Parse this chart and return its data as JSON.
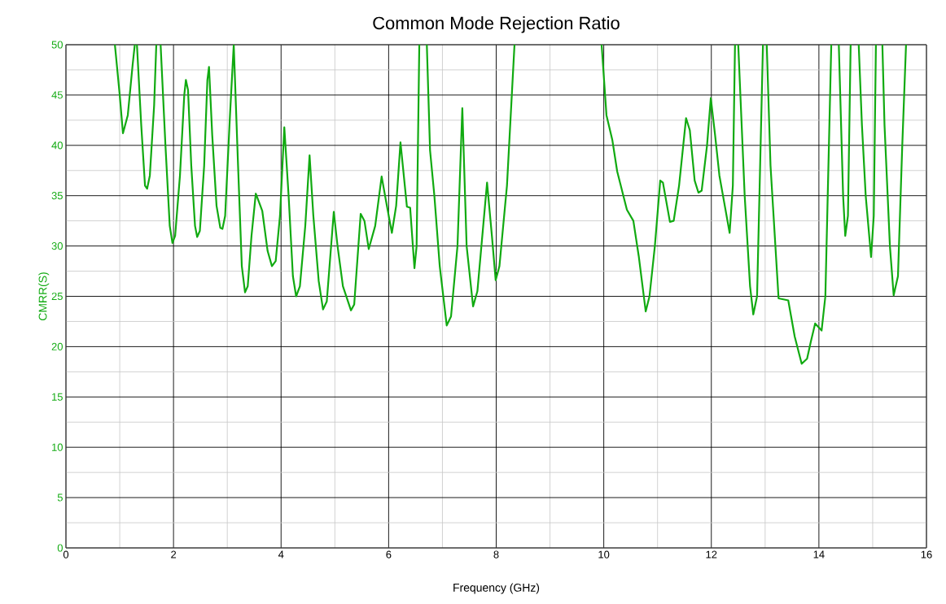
{
  "chart_data": {
    "type": "line",
    "title": "Common Mode Rejection Ratio",
    "xlabel": "Frequency (GHz)",
    "ylabel": "CMRR(S)",
    "xlim": [
      0,
      16
    ],
    "xticks": [
      0,
      2,
      4,
      6,
      8,
      10,
      12,
      14,
      16
    ],
    "ylim": [
      0,
      50
    ],
    "yticks": [
      0,
      5,
      10,
      15,
      20,
      25,
      30,
      35,
      40,
      45,
      50
    ],
    "grid": true,
    "marker": "none",
    "line_style": "solid",
    "x": [
      0.91,
      1.0,
      1.06,
      1.15,
      1.24,
      1.28,
      1.3,
      1.32,
      1.4,
      1.47,
      1.51,
      1.56,
      1.64,
      1.68,
      1.72,
      1.76,
      1.85,
      1.93,
      1.98,
      2.03,
      2.12,
      2.2,
      2.23,
      2.27,
      2.33,
      2.4,
      2.44,
      2.49,
      2.57,
      2.63,
      2.66,
      2.72,
      2.8,
      2.87,
      2.91,
      2.96,
      3.05,
      3.12,
      3.2,
      3.27,
      3.33,
      3.38,
      3.45,
      3.53,
      3.65,
      3.75,
      3.83,
      3.9,
      3.98,
      4.06,
      4.14,
      4.22,
      4.28,
      4.35,
      4.45,
      4.53,
      4.6,
      4.7,
      4.78,
      4.85,
      4.98,
      5.05,
      5.15,
      5.3,
      5.36,
      5.48,
      5.55,
      5.63,
      5.75,
      5.87,
      5.95,
      6.06,
      6.14,
      6.22,
      6.34,
      6.4,
      6.48,
      6.52,
      6.57,
      6.64,
      6.71,
      6.77,
      6.85,
      6.95,
      7.08,
      7.16,
      7.28,
      7.37,
      7.45,
      7.57,
      7.65,
      7.83,
      7.92,
      7.99,
      8.06,
      8.2,
      8.34,
      9.2,
      9.96,
      10.05,
      10.16,
      10.25,
      10.43,
      10.55,
      10.65,
      10.78,
      10.85,
      10.95,
      11.05,
      11.1,
      11.23,
      11.3,
      11.4,
      11.53,
      11.6,
      11.69,
      11.76,
      11.82,
      11.92,
      11.99,
      12.07,
      12.15,
      12.25,
      12.34,
      12.4,
      12.44,
      12.47,
      12.5,
      12.62,
      12.72,
      12.78,
      12.85,
      12.96,
      13.0,
      13.03,
      13.1,
      13.25,
      13.43,
      13.55,
      13.68,
      13.78,
      13.85,
      13.93,
      14.05,
      14.12,
      14.23,
      14.3,
      14.37,
      14.45,
      14.49,
      14.54,
      14.59,
      14.66,
      14.74,
      14.8,
      14.87,
      14.97,
      15.02,
      15.06,
      15.12,
      15.18,
      15.22,
      15.32,
      15.39,
      15.47,
      15.55,
      15.62
    ],
    "series": [
      {
        "color": "#11aa11",
        "values": [
          50,
          45,
          41.2,
          43,
          48,
          50,
          null,
          50,
          42,
          36,
          35.7,
          37,
          44,
          50,
          null,
          50,
          40,
          32,
          30.3,
          31,
          37,
          45,
          46.5,
          45.5,
          38,
          32,
          30.9,
          31.5,
          38,
          46.5,
          47.8,
          41,
          34,
          31.8,
          31.7,
          33,
          43,
          50,
          38,
          28,
          25.4,
          26,
          31,
          35.2,
          33.5,
          29.5,
          28,
          28.5,
          33,
          41.8,
          35,
          27,
          25,
          26,
          32,
          39,
          33,
          26.5,
          23.7,
          24.5,
          33.4,
          30,
          26,
          23.6,
          24.2,
          33.2,
          32.5,
          29.7,
          32,
          36.9,
          34.5,
          31.3,
          34,
          40.3,
          33.9,
          33.8,
          27.8,
          30,
          50,
          null,
          50,
          39.5,
          35,
          28,
          22.1,
          23,
          30,
          43.7,
          30,
          24,
          25.5,
          36.3,
          31,
          26.6,
          28,
          36,
          50,
          null,
          50,
          43,
          40.5,
          37.4,
          33.6,
          32.5,
          29,
          23.5,
          25,
          30,
          36.5,
          36.3,
          32.4,
          32.5,
          36,
          42.7,
          41.5,
          36.5,
          35.3,
          35.5,
          40,
          44.7,
          41,
          37,
          34,
          31.3,
          36,
          50,
          null,
          50,
          35,
          26,
          23.2,
          25,
          50,
          null,
          50,
          38,
          24.8,
          24.6,
          21,
          18.3,
          18.8,
          20.5,
          22.3,
          21.6,
          25,
          50,
          null,
          50,
          35,
          31,
          33,
          50,
          null,
          50,
          42,
          35,
          28.9,
          33,
          50,
          null,
          50,
          42,
          30,
          25.1,
          27,
          40,
          50
        ]
      }
    ]
  }
}
